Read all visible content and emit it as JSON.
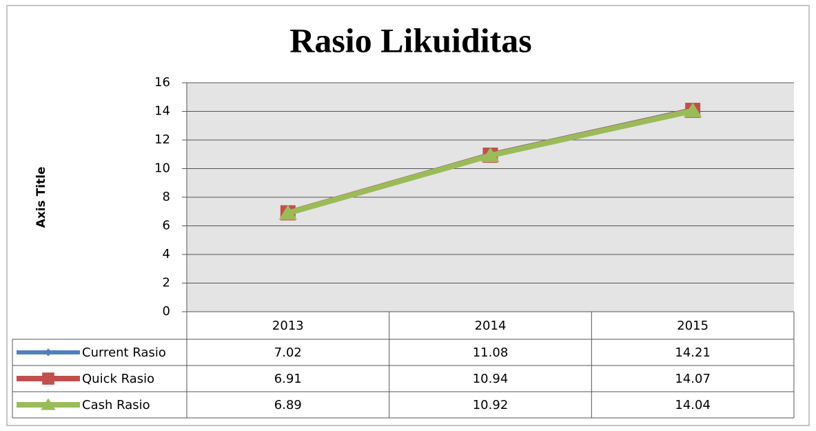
{
  "chart_data": {
    "type": "line",
    "title": "Rasio Likuiditas",
    "y_axis_label": "Axis Title",
    "categories": [
      "2013",
      "2014",
      "2015"
    ],
    "series": [
      {
        "name": "Current Rasio",
        "color": "#4f81bd",
        "marker": "diamond",
        "values": [
          7.02,
          11.08,
          14.21
        ]
      },
      {
        "name": "Quick Rasio",
        "color": "#c0504d",
        "marker": "square",
        "values": [
          6.91,
          10.94,
          14.07
        ]
      },
      {
        "name": "Cash Rasio",
        "color": "#9bbb59",
        "marker": "triangle",
        "values": [
          6.89,
          10.92,
          14.04
        ]
      }
    ],
    "ylim": [
      0,
      16
    ],
    "yticks": [
      0,
      2,
      4,
      6,
      8,
      10,
      12,
      14,
      16
    ],
    "grid": true,
    "data_table": true
  }
}
